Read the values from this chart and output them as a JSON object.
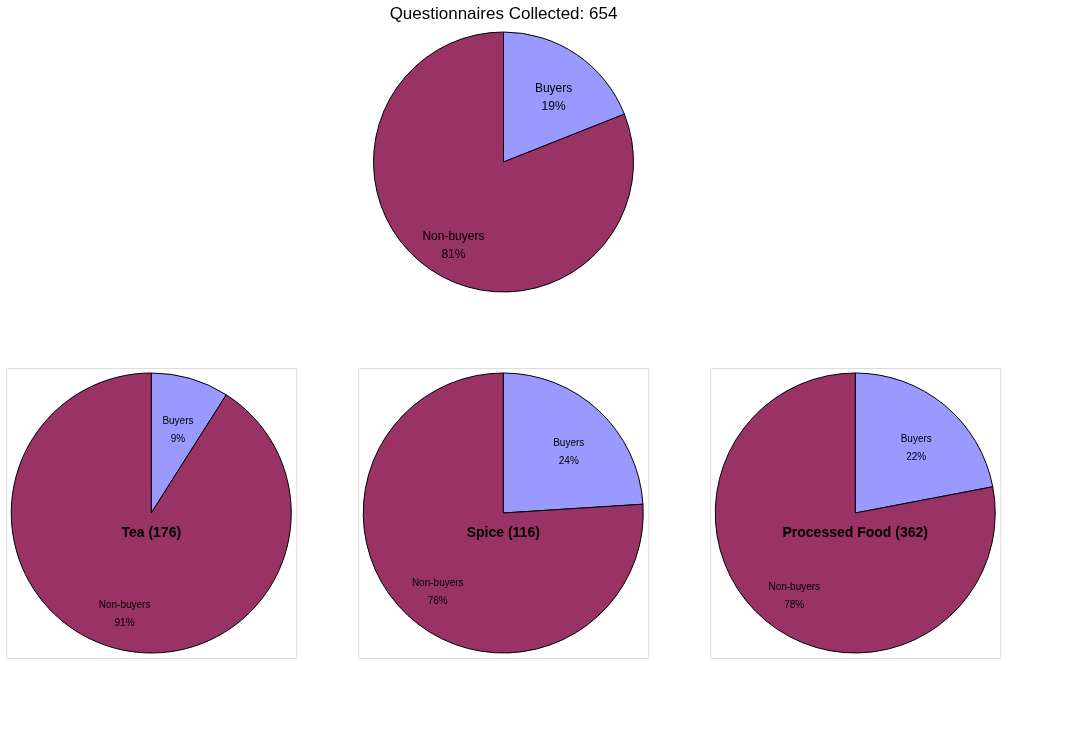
{
  "chart_data": [
    {
      "type": "pie",
      "title": "Questionnaires Collected: 654",
      "categories": [
        "Buyers",
        "Non-buyers"
      ],
      "values": [
        19,
        81
      ],
      "colors": [
        "#9999ff",
        "#993366"
      ],
      "value_labels": [
        "19%",
        "81%"
      ],
      "legend": false
    },
    {
      "type": "pie",
      "title": "Tea (176)",
      "categories": [
        "Buyers",
        "Non-buyers"
      ],
      "values": [
        9,
        91
      ],
      "colors": [
        "#9999ff",
        "#993366"
      ],
      "value_labels": [
        "9%",
        "91%"
      ],
      "legend": false
    },
    {
      "type": "pie",
      "title": "Spice (116)",
      "categories": [
        "Buyers",
        "Non-buyers"
      ],
      "values": [
        24,
        76
      ],
      "colors": [
        "#9999ff",
        "#993366"
      ],
      "value_labels": [
        "24%",
        "76%"
      ],
      "legend": false
    },
    {
      "type": "pie",
      "title": "Processed Food (362)",
      "categories": [
        "Buyers",
        "Non-buyers"
      ],
      "values": [
        22,
        78
      ],
      "colors": [
        "#9999ff",
        "#993366"
      ],
      "value_labels": [
        "22%",
        "78%"
      ],
      "legend": false
    }
  ]
}
